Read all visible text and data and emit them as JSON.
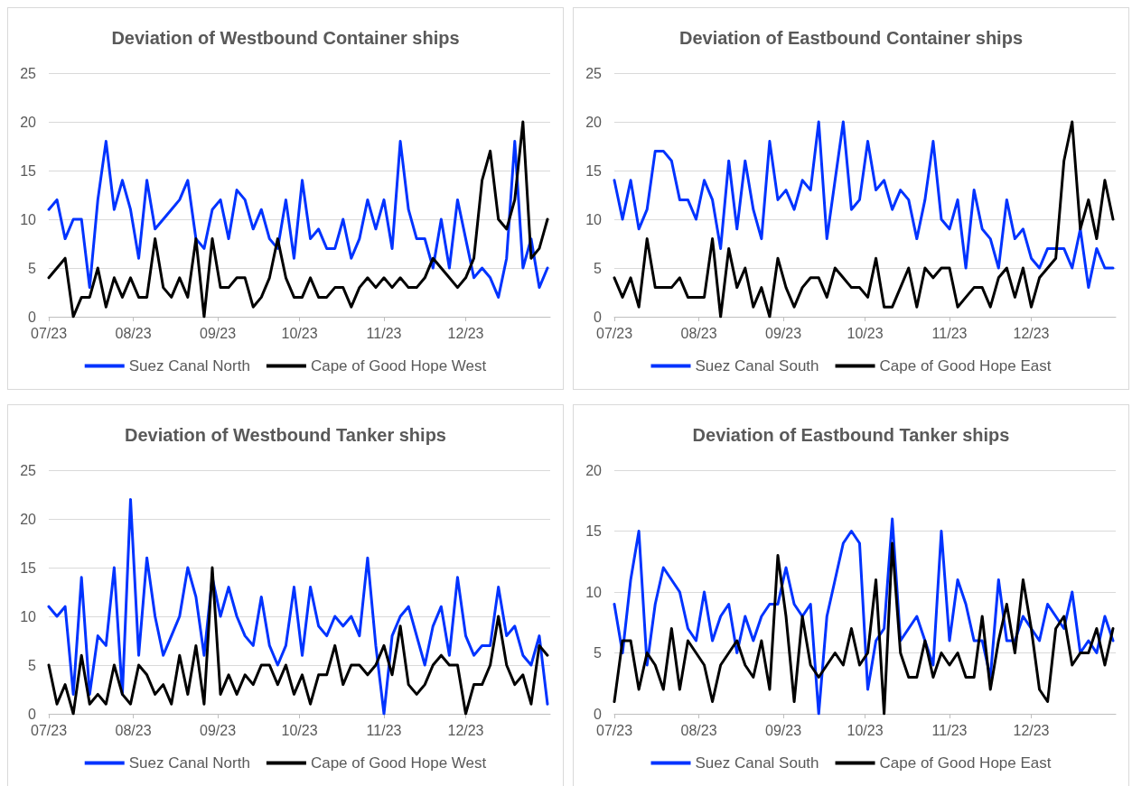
{
  "chart_data": [
    {
      "type": "line",
      "title": "Deviation of Westbound Container ships",
      "marker": "none",
      "grid": "y",
      "legend": "bottom",
      "xlim": [
        "2023-07-01",
        "2024-01-01"
      ],
      "xticks": [
        {
          "value": "2023-07-01",
          "label": "07/23"
        },
        {
          "value": "2023-08-01",
          "label": "08/23"
        },
        {
          "value": "2023-09-01",
          "label": "09/23"
        },
        {
          "value": "2023-10-01",
          "label": "10/23"
        },
        {
          "value": "2023-11-01",
          "label": "11/23"
        },
        {
          "value": "2023-12-01",
          "label": "12/23"
        }
      ],
      "ylim": [
        0,
        25
      ],
      "yticks": [
        0,
        5,
        10,
        15,
        20,
        25
      ],
      "x": [
        "2023-07-01",
        "2023-07-04",
        "2023-07-07",
        "2023-07-10",
        "2023-07-13",
        "2023-07-16",
        "2023-07-19",
        "2023-07-22",
        "2023-07-25",
        "2023-07-28",
        "2023-07-31",
        "2023-08-03",
        "2023-08-06",
        "2023-08-09",
        "2023-08-12",
        "2023-08-15",
        "2023-08-18",
        "2023-08-21",
        "2023-08-24",
        "2023-08-27",
        "2023-08-30",
        "2023-09-02",
        "2023-09-05",
        "2023-09-08",
        "2023-09-11",
        "2023-09-14",
        "2023-09-17",
        "2023-09-20",
        "2023-09-23",
        "2023-09-26",
        "2023-09-29",
        "2023-10-02",
        "2023-10-05",
        "2023-10-08",
        "2023-10-11",
        "2023-10-14",
        "2023-10-17",
        "2023-10-20",
        "2023-10-23",
        "2023-10-26",
        "2023-10-29",
        "2023-11-01",
        "2023-11-04",
        "2023-11-07",
        "2023-11-10",
        "2023-11-13",
        "2023-11-16",
        "2023-11-19",
        "2023-11-22",
        "2023-11-25",
        "2023-11-28",
        "2023-12-01",
        "2023-12-04",
        "2023-12-07",
        "2023-12-10",
        "2023-12-13",
        "2023-12-16",
        "2023-12-19",
        "2023-12-22",
        "2023-12-25",
        "2023-12-28",
        "2023-12-31"
      ],
      "series": [
        {
          "name": "Suez Canal North",
          "color": "#0033ff",
          "values": [
            11,
            12,
            8,
            10,
            10,
            3,
            12,
            18,
            11,
            14,
            11,
            6,
            14,
            9,
            10,
            11,
            12,
            14,
            8,
            7,
            11,
            12,
            8,
            13,
            12,
            9,
            11,
            8,
            7,
            12,
            6,
            14,
            8,
            9,
            7,
            7,
            10,
            6,
            8,
            12,
            9,
            12,
            7,
            18,
            11,
            8,
            8,
            5,
            10,
            5,
            12,
            8,
            4,
            5,
            4,
            2,
            6,
            18,
            5,
            8,
            3,
            5
          ]
        },
        {
          "name": "Cape of Good Hope West",
          "color": "#000000",
          "values": [
            4,
            5,
            6,
            0,
            2,
            2,
            5,
            1,
            4,
            2,
            4,
            2,
            2,
            8,
            3,
            2,
            4,
            2,
            8,
            0,
            8,
            3,
            3,
            4,
            4,
            1,
            2,
            4,
            8,
            4,
            2,
            2,
            4,
            2,
            2,
            3,
            3,
            1,
            3,
            4,
            3,
            4,
            3,
            4,
            3,
            3,
            4,
            6,
            5,
            4,
            3,
            4,
            6,
            14,
            17,
            10,
            9,
            12,
            20,
            6,
            7,
            10
          ]
        }
      ]
    },
    {
      "type": "line",
      "title": "Deviation of Eastbound Container ships",
      "marker": "none",
      "grid": "y",
      "legend": "bottom",
      "xlim": [
        "2023-07-01",
        "2024-01-01"
      ],
      "xticks": [
        {
          "value": "2023-07-01",
          "label": "07/23"
        },
        {
          "value": "2023-08-01",
          "label": "08/23"
        },
        {
          "value": "2023-09-01",
          "label": "09/23"
        },
        {
          "value": "2023-10-01",
          "label": "10/23"
        },
        {
          "value": "2023-11-01",
          "label": "11/23"
        },
        {
          "value": "2023-12-01",
          "label": "12/23"
        }
      ],
      "ylim": [
        0,
        25
      ],
      "yticks": [
        0,
        5,
        10,
        15,
        20,
        25
      ],
      "x": [
        "2023-07-01",
        "2023-07-04",
        "2023-07-07",
        "2023-07-10",
        "2023-07-13",
        "2023-07-16",
        "2023-07-19",
        "2023-07-22",
        "2023-07-25",
        "2023-07-28",
        "2023-07-31",
        "2023-08-03",
        "2023-08-06",
        "2023-08-09",
        "2023-08-12",
        "2023-08-15",
        "2023-08-18",
        "2023-08-21",
        "2023-08-24",
        "2023-08-27",
        "2023-08-30",
        "2023-09-02",
        "2023-09-05",
        "2023-09-08",
        "2023-09-11",
        "2023-09-14",
        "2023-09-17",
        "2023-09-20",
        "2023-09-23",
        "2023-09-26",
        "2023-09-29",
        "2023-10-02",
        "2023-10-05",
        "2023-10-08",
        "2023-10-11",
        "2023-10-14",
        "2023-10-17",
        "2023-10-20",
        "2023-10-23",
        "2023-10-26",
        "2023-10-29",
        "2023-11-01",
        "2023-11-04",
        "2023-11-07",
        "2023-11-10",
        "2023-11-13",
        "2023-11-16",
        "2023-11-19",
        "2023-11-22",
        "2023-11-25",
        "2023-11-28",
        "2023-12-01",
        "2023-12-04",
        "2023-12-07",
        "2023-12-10",
        "2023-12-13",
        "2023-12-16",
        "2023-12-19",
        "2023-12-22",
        "2023-12-25",
        "2023-12-28",
        "2023-12-31"
      ],
      "series": [
        {
          "name": "Suez Canal South",
          "color": "#0033ff",
          "values": [
            14,
            10,
            14,
            9,
            11,
            17,
            17,
            16,
            12,
            12,
            10,
            14,
            12,
            7,
            16,
            9,
            16,
            11,
            8,
            18,
            12,
            13,
            11,
            14,
            13,
            20,
            8,
            14,
            20,
            11,
            12,
            18,
            13,
            14,
            11,
            13,
            12,
            8,
            12,
            18,
            10,
            9,
            12,
            5,
            13,
            9,
            8,
            5,
            12,
            8,
            9,
            6,
            5,
            7,
            7,
            7,
            5,
            9,
            3,
            7,
            5,
            5
          ]
        },
        {
          "name": "Cape of Good Hope East",
          "color": "#000000",
          "values": [
            4,
            2,
            4,
            1,
            8,
            3,
            3,
            3,
            4,
            2,
            2,
            2,
            8,
            0,
            7,
            3,
            5,
            1,
            3,
            0,
            6,
            3,
            1,
            3,
            4,
            4,
            2,
            5,
            4,
            3,
            3,
            2,
            6,
            1,
            1,
            3,
            5,
            1,
            5,
            4,
            5,
            5,
            1,
            2,
            3,
            3,
            1,
            4,
            5,
            2,
            5,
            1,
            4,
            5,
            6,
            16,
            20,
            9,
            12,
            8,
            14,
            10
          ]
        }
      ]
    },
    {
      "type": "line",
      "title": "Deviation of Westbound Tanker ships",
      "marker": "none",
      "grid": "y",
      "legend": "bottom",
      "xlim": [
        "2023-07-01",
        "2024-01-01"
      ],
      "xticks": [
        {
          "value": "2023-07-01",
          "label": "07/23"
        },
        {
          "value": "2023-08-01",
          "label": "08/23"
        },
        {
          "value": "2023-09-01",
          "label": "09/23"
        },
        {
          "value": "2023-10-01",
          "label": "10/23"
        },
        {
          "value": "2023-11-01",
          "label": "11/23"
        },
        {
          "value": "2023-12-01",
          "label": "12/23"
        }
      ],
      "ylim": [
        0,
        25
      ],
      "yticks": [
        0,
        5,
        10,
        15,
        20,
        25
      ],
      "x": [
        "2023-07-01",
        "2023-07-04",
        "2023-07-07",
        "2023-07-10",
        "2023-07-13",
        "2023-07-16",
        "2023-07-19",
        "2023-07-22",
        "2023-07-25",
        "2023-07-28",
        "2023-07-31",
        "2023-08-03",
        "2023-08-06",
        "2023-08-09",
        "2023-08-12",
        "2023-08-15",
        "2023-08-18",
        "2023-08-21",
        "2023-08-24",
        "2023-08-27",
        "2023-08-30",
        "2023-09-02",
        "2023-09-05",
        "2023-09-08",
        "2023-09-11",
        "2023-09-14",
        "2023-09-17",
        "2023-09-20",
        "2023-09-23",
        "2023-09-26",
        "2023-09-29",
        "2023-10-02",
        "2023-10-05",
        "2023-10-08",
        "2023-10-11",
        "2023-10-14",
        "2023-10-17",
        "2023-10-20",
        "2023-10-23",
        "2023-10-26",
        "2023-10-29",
        "2023-11-01",
        "2023-11-04",
        "2023-11-07",
        "2023-11-10",
        "2023-11-13",
        "2023-11-16",
        "2023-11-19",
        "2023-11-22",
        "2023-11-25",
        "2023-11-28",
        "2023-12-01",
        "2023-12-04",
        "2023-12-07",
        "2023-12-10",
        "2023-12-13",
        "2023-12-16",
        "2023-12-19",
        "2023-12-22",
        "2023-12-25",
        "2023-12-28",
        "2023-12-31"
      ],
      "series": [
        {
          "name": "Suez Canal North",
          "color": "#0033ff",
          "values": [
            11,
            10,
            11,
            2,
            14,
            2,
            8,
            7,
            15,
            2,
            22,
            6,
            16,
            10,
            6,
            8,
            10,
            15,
            12,
            6,
            14,
            10,
            13,
            10,
            8,
            7,
            12,
            7,
            5,
            7,
            13,
            6,
            13,
            9,
            8,
            10,
            9,
            10,
            8,
            16,
            7,
            0,
            8,
            10,
            11,
            8,
            5,
            9,
            11,
            6,
            14,
            8,
            6,
            7,
            7,
            13,
            8,
            9,
            6,
            5,
            8,
            1
          ]
        },
        {
          "name": "Cape of Good Hope West",
          "color": "#000000",
          "values": [
            5,
            1,
            3,
            0,
            6,
            1,
            2,
            1,
            5,
            2,
            1,
            5,
            4,
            2,
            3,
            1,
            6,
            2,
            7,
            1,
            15,
            2,
            4,
            2,
            4,
            3,
            5,
            5,
            3,
            5,
            2,
            4,
            1,
            4,
            4,
            7,
            3,
            5,
            5,
            4,
            5,
            7,
            4,
            9,
            3,
            2,
            3,
            5,
            6,
            5,
            5,
            0,
            3,
            3,
            5,
            10,
            5,
            3,
            4,
            1,
            7,
            6
          ]
        }
      ]
    },
    {
      "type": "line",
      "title": "Deviation of Eastbound Tanker ships",
      "marker": "none",
      "grid": "y",
      "legend": "bottom",
      "xlim": [
        "2023-07-01",
        "2024-01-01"
      ],
      "xticks": [
        {
          "value": "2023-07-01",
          "label": "07/23"
        },
        {
          "value": "2023-08-01",
          "label": "08/23"
        },
        {
          "value": "2023-09-01",
          "label": "09/23"
        },
        {
          "value": "2023-10-01",
          "label": "10/23"
        },
        {
          "value": "2023-11-01",
          "label": "11/23"
        },
        {
          "value": "2023-12-01",
          "label": "12/23"
        }
      ],
      "ylim": [
        0,
        20
      ],
      "yticks": [
        0,
        5,
        10,
        15,
        20
      ],
      "x": [
        "2023-07-01",
        "2023-07-04",
        "2023-07-07",
        "2023-07-10",
        "2023-07-13",
        "2023-07-16",
        "2023-07-19",
        "2023-07-22",
        "2023-07-25",
        "2023-07-28",
        "2023-07-31",
        "2023-08-03",
        "2023-08-06",
        "2023-08-09",
        "2023-08-12",
        "2023-08-15",
        "2023-08-18",
        "2023-08-21",
        "2023-08-24",
        "2023-08-27",
        "2023-08-30",
        "2023-09-02",
        "2023-09-05",
        "2023-09-08",
        "2023-09-11",
        "2023-09-14",
        "2023-09-17",
        "2023-09-20",
        "2023-09-23",
        "2023-09-26",
        "2023-09-29",
        "2023-10-02",
        "2023-10-05",
        "2023-10-08",
        "2023-10-11",
        "2023-10-14",
        "2023-10-17",
        "2023-10-20",
        "2023-10-23",
        "2023-10-26",
        "2023-10-29",
        "2023-11-01",
        "2023-11-04",
        "2023-11-07",
        "2023-11-10",
        "2023-11-13",
        "2023-11-16",
        "2023-11-19",
        "2023-11-22",
        "2023-11-25",
        "2023-11-28",
        "2023-12-01",
        "2023-12-04",
        "2023-12-07",
        "2023-12-10",
        "2023-12-13",
        "2023-12-16",
        "2023-12-19",
        "2023-12-22",
        "2023-12-25",
        "2023-12-28",
        "2023-12-31"
      ],
      "series": [
        {
          "name": "Suez Canal South",
          "color": "#0033ff",
          "values": [
            9,
            5,
            11,
            15,
            4,
            9,
            12,
            11,
            10,
            7,
            6,
            10,
            6,
            8,
            9,
            5,
            8,
            6,
            8,
            9,
            9,
            12,
            9,
            8,
            9,
            0,
            8,
            11,
            14,
            15,
            14,
            2,
            6,
            7,
            16,
            6,
            7,
            8,
            6,
            4,
            15,
            6,
            11,
            9,
            6,
            6,
            3,
            11,
            6,
            6,
            8,
            7,
            6,
            9,
            8,
            7,
            10,
            5,
            6,
            5,
            8,
            6
          ]
        },
        {
          "name": "Cape of Good Hope East",
          "color": "#000000",
          "values": [
            1,
            6,
            6,
            2,
            5,
            4,
            2,
            7,
            2,
            6,
            5,
            4,
            1,
            4,
            5,
            6,
            4,
            3,
            6,
            2,
            13,
            8,
            1,
            8,
            4,
            3,
            4,
            5,
            4,
            7,
            4,
            5,
            11,
            0,
            14,
            5,
            3,
            3,
            6,
            3,
            5,
            4,
            5,
            3,
            3,
            8,
            2,
            6,
            9,
            5,
            11,
            7,
            2,
            1,
            7,
            8,
            4,
            5,
            5,
            7,
            4,
            7
          ]
        }
      ]
    }
  ]
}
